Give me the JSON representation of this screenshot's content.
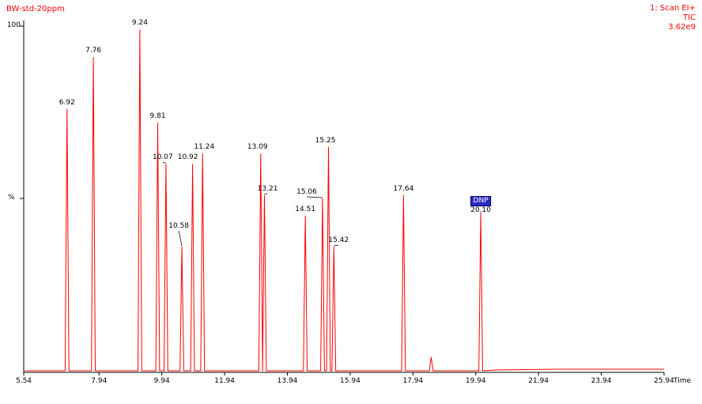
{
  "header": {
    "sample_name": "BW-std-20ppm",
    "scan_line": "1: Scan EI+",
    "trace_type": "TIC",
    "intensity": "3.62e9"
  },
  "axis": {
    "x_title": "Time",
    "y_title": "%",
    "y_max_label": "100"
  },
  "chart_data": {
    "type": "line",
    "title": "BW-std-20ppm total ion chromatogram",
    "xlabel": "Time",
    "ylabel": "%",
    "x_range": [
      5.54,
      25.94
    ],
    "y_range": [
      0,
      100
    ],
    "legend": "1: Scan EI+ TIC 3.62e9",
    "trace_color": "#ff0000",
    "x_ticks": [
      {
        "t": 5.54,
        "label": "5.54"
      },
      {
        "t": 7.94,
        "label": "7.94"
      },
      {
        "t": 9.94,
        "label": "9.94"
      },
      {
        "t": 11.94,
        "label": "11.94"
      },
      {
        "t": 13.94,
        "label": "13.94"
      },
      {
        "t": 15.94,
        "label": "15.94"
      },
      {
        "t": 17.94,
        "label": "17.94"
      },
      {
        "t": 19.94,
        "label": "19.94"
      },
      {
        "t": 21.94,
        "label": "21.94"
      },
      {
        "t": 23.94,
        "label": "23.94"
      },
      {
        "t": 25.94,
        "label": "25.94"
      }
    ],
    "peaks": [
      {
        "rt": 6.92,
        "height_pct": 76,
        "label": "6.92"
      },
      {
        "rt": 7.76,
        "height_pct": 91,
        "label": "7.76"
      },
      {
        "rt": 9.24,
        "height_pct": 99,
        "label": "9.24"
      },
      {
        "rt": 9.81,
        "height_pct": 72,
        "label": "9.81"
      },
      {
        "rt": 10.07,
        "height_pct": 60,
        "label": "10.07",
        "leader": true,
        "dx": -4
      },
      {
        "rt": 10.58,
        "height_pct": 36,
        "label": "10.58",
        "leader": true,
        "rise": 18,
        "dx": -4
      },
      {
        "rt": 10.92,
        "height_pct": 60,
        "label": "10.92",
        "dx": -6
      },
      {
        "rt": 11.24,
        "height_pct": 63,
        "label": "11.24",
        "dx": 2
      },
      {
        "rt": 13.09,
        "height_pct": 63,
        "label": "13.09",
        "dx": -4
      },
      {
        "rt": 13.21,
        "height_pct": 51,
        "label": "13.21",
        "leader": true,
        "dx": 4
      },
      {
        "rt": 14.51,
        "height_pct": 45,
        "label": "14.51"
      },
      {
        "rt": 15.06,
        "height_pct": 50,
        "label": "15.06",
        "leader": true,
        "dx": -20
      },
      {
        "rt": 15.25,
        "height_pct": 65,
        "label": "15.25",
        "dx": -4
      },
      {
        "rt": 15.42,
        "height_pct": 36,
        "label": "15.42",
        "leader": true,
        "dx": 6
      },
      {
        "rt": 17.64,
        "height_pct": 51,
        "label": "17.64"
      },
      {
        "rt": 18.52,
        "height_pct": 4,
        "label": ""
      },
      {
        "rt": 20.1,
        "height_pct": 46,
        "label": "20.10",
        "tag": "DNP"
      }
    ]
  }
}
